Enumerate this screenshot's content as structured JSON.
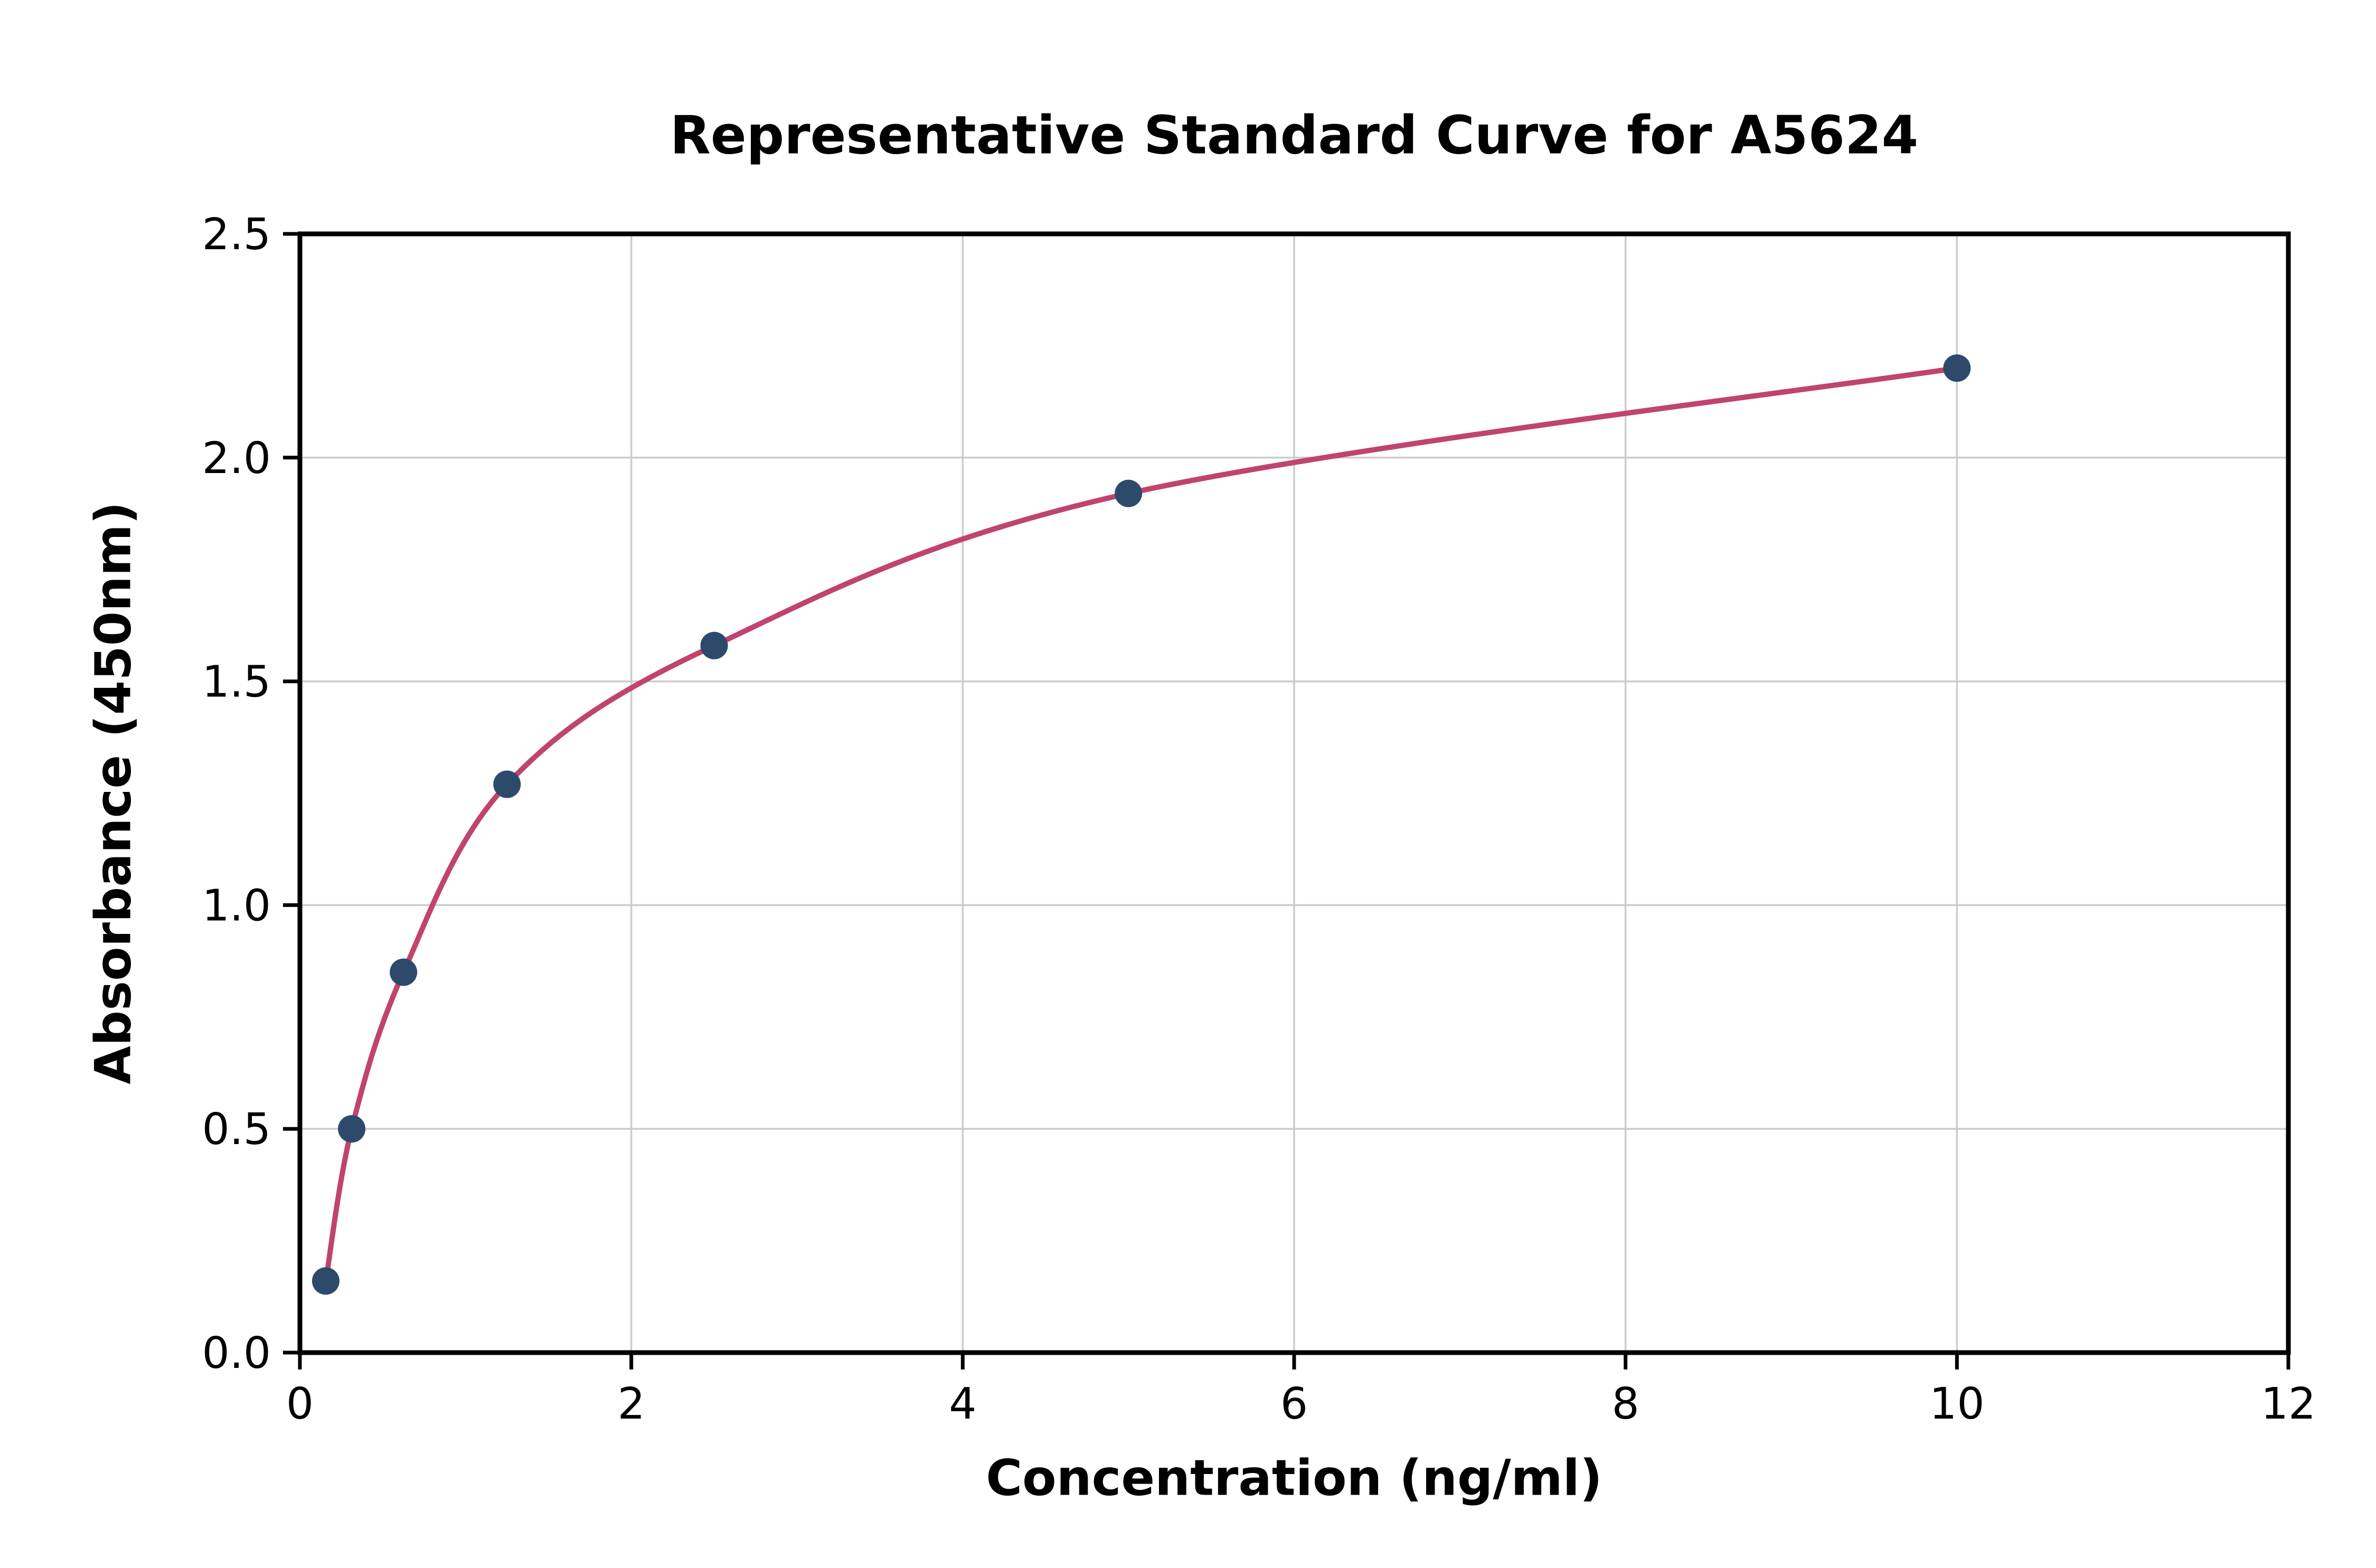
{
  "figure": {
    "background": "#ffffff"
  },
  "chart_data": {
    "type": "scatter",
    "title": "Representative Standard Curve for A5624",
    "xlabel": "Concentration (ng/ml)",
    "ylabel": "Absorbance (450nm)",
    "xlim": [
      0,
      12
    ],
    "ylim": [
      0,
      2.5
    ],
    "x_ticks": [
      0,
      2,
      4,
      6,
      8,
      10,
      12
    ],
    "x_tick_labels": [
      "0",
      "2",
      "4",
      "6",
      "8",
      "10",
      "12"
    ],
    "y_ticks": [
      0.0,
      0.5,
      1.0,
      1.5,
      2.0,
      2.5
    ],
    "y_tick_labels": [
      "0.0",
      "0.5",
      "1.0",
      "1.5",
      "2.0",
      "2.5"
    ],
    "grid": true,
    "legend": "none",
    "points": [
      {
        "x": 0.156,
        "y": 0.16
      },
      {
        "x": 0.3125,
        "y": 0.5
      },
      {
        "x": 0.625,
        "y": 0.85
      },
      {
        "x": 1.25,
        "y": 1.27
      },
      {
        "x": 2.5,
        "y": 1.58
      },
      {
        "x": 5,
        "y": 1.92
      },
      {
        "x": 10,
        "y": 2.2
      }
    ],
    "curve_color": "#c0446c",
    "point_color": "#2e4a6b",
    "grid_color": "#cccccc",
    "axis_color": "#000000",
    "tick_label_color": "#000000"
  }
}
